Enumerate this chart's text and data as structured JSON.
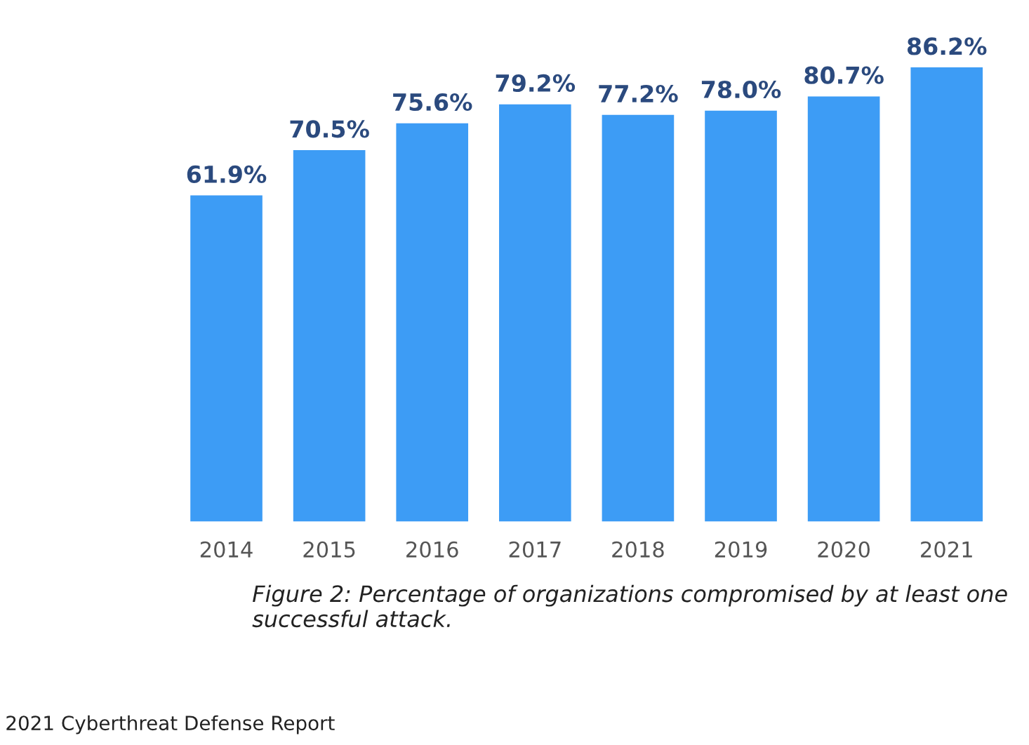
{
  "chart_data": {
    "type": "bar",
    "categories": [
      "2014",
      "2015",
      "2016",
      "2017",
      "2018",
      "2019",
      "2020",
      "2021"
    ],
    "values": [
      61.9,
      70.5,
      75.6,
      79.2,
      77.2,
      78.0,
      80.7,
      86.2
    ],
    "value_labels": [
      "61.9%",
      "70.5%",
      "75.6%",
      "79.2%",
      "77.2%",
      "78.0%",
      "80.7%",
      "86.2%"
    ],
    "color": "#3d9cf5",
    "annotations": [
      "Figure 2: Percentage of organizations compromised by at least one successful attack.",
      "2021 Cyberthreat Defense Report"
    ],
    "grid": false,
    "legend": false
  }
}
